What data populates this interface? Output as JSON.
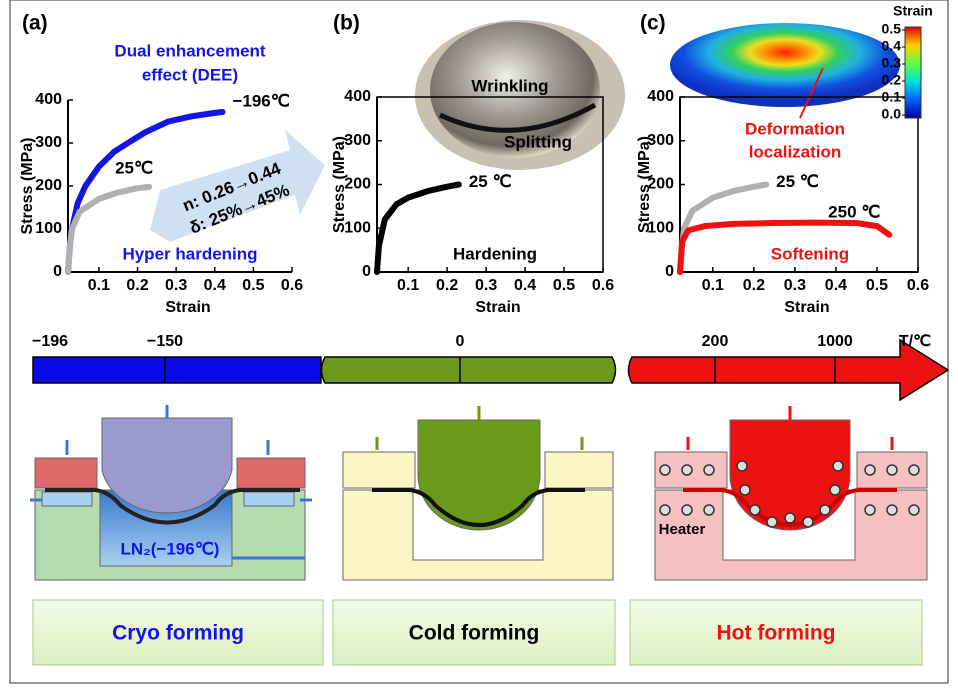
{
  "chart_data": [
    {
      "type": "line",
      "panel_label": "(a)",
      "xlabel": "Strain",
      "ylabel": "Stress (MPa)",
      "xlim": [
        0.02,
        0.6
      ],
      "xticks": [
        0.1,
        0.2,
        0.3,
        0.4,
        0.5,
        0.6
      ],
      "ylim": [
        0,
        400
      ],
      "yticks": [
        0,
        100,
        200,
        300,
        400
      ],
      "series": [
        {
          "name": "−196℃",
          "color": "#1414e6",
          "x": [
            0.02,
            0.025,
            0.03,
            0.045,
            0.065,
            0.1,
            0.14,
            0.175,
            0.22,
            0.28,
            0.34,
            0.4,
            0.42
          ],
          "values": [
            0,
            60,
            100,
            160,
            200,
            245,
            280,
            300,
            325,
            350,
            362,
            370,
            372
          ]
        },
        {
          "name": "25℃",
          "color": "#b0b0b0",
          "x": [
            0.02,
            0.025,
            0.03,
            0.05,
            0.1,
            0.15,
            0.2,
            0.23
          ],
          "values": [
            0,
            60,
            100,
            140,
            170,
            185,
            195,
            198
          ]
        }
      ],
      "annotations": [
        {
          "text": [
            "Dual enhancement",
            "effect (DEE)"
          ],
          "color": "#1414e6"
        },
        {
          "text": [
            "Hyper hardening"
          ],
          "color": "#1414e6"
        },
        {
          "text": [
            "n: 0.26→0.44",
            "δ: 25%→45%"
          ],
          "color": "#000000"
        }
      ]
    },
    {
      "type": "line",
      "panel_label": "(b)",
      "xlabel": "Strain",
      "ylabel": "Stress (MPa)",
      "xlim": [
        0.02,
        0.6
      ],
      "xticks": [
        0.1,
        0.2,
        0.3,
        0.4,
        0.5,
        0.6
      ],
      "ylim": [
        0,
        400
      ],
      "yticks": [
        0,
        100,
        200,
        300,
        400
      ],
      "series": [
        {
          "name": "25 ℃",
          "color": "#000000",
          "x": [
            0.02,
            0.025,
            0.04,
            0.07,
            0.1,
            0.15,
            0.2,
            0.23
          ],
          "values": [
            0,
            60,
            120,
            155,
            170,
            185,
            195,
            200
          ]
        }
      ],
      "annotations": [
        {
          "text": [
            "Hardening"
          ],
          "color": "#000000"
        },
        {
          "text": [
            "Wrinkling"
          ],
          "color": "#000000"
        },
        {
          "text": [
            "Splitting"
          ],
          "color": "#000000"
        }
      ]
    },
    {
      "type": "line",
      "panel_label": "(c)",
      "xlabel": "Strain",
      "ylabel": "Stress (MPa)",
      "xlim": [
        0.02,
        0.6
      ],
      "xticks": [
        0.1,
        0.2,
        0.3,
        0.4,
        0.5,
        0.6
      ],
      "ylim": [
        0,
        400
      ],
      "yticks": [
        0,
        100,
        200,
        300,
        400
      ],
      "series": [
        {
          "name": "25 ℃",
          "color": "#b0b0b0",
          "x": [
            0.02,
            0.025,
            0.03,
            0.05,
            0.1,
            0.15,
            0.2,
            0.23
          ],
          "values": [
            0,
            60,
            100,
            140,
            170,
            185,
            195,
            200
          ]
        },
        {
          "name": "250 ℃",
          "color": "#ee1111",
          "x": [
            0.02,
            0.025,
            0.04,
            0.08,
            0.15,
            0.25,
            0.35,
            0.45,
            0.5,
            0.53
          ],
          "values": [
            0,
            70,
            95,
            105,
            110,
            112,
            113,
            112,
            105,
            85
          ]
        }
      ],
      "annotations": [
        {
          "text": [
            "Softening"
          ],
          "color": "#ee1111"
        },
        {
          "text": [
            "Deformation",
            "localization"
          ],
          "color": "#ee1111"
        }
      ],
      "colorbar": {
        "title": "Strain",
        "lim": [
          0,
          0.5
        ],
        "ticks": [
          {
            "value": 0,
            "label": "0.0"
          },
          0.1,
          0.2,
          0.3,
          0.4,
          0.5
        ]
      }
    }
  ],
  "temperature_axis": {
    "ticks": [
      "−196",
      "−150",
      "0",
      "200",
      "1000"
    ],
    "unit": "T/℃"
  },
  "process_labels": {
    "coolant": "LN₂(−196℃)",
    "heater": "Heater"
  },
  "processes": [
    {
      "title": "Cryo forming",
      "color": "#1414e6"
    },
    {
      "title": "Cold forming",
      "color": "#000000"
    },
    {
      "title": "Hot forming",
      "color": "#ee1111"
    }
  ]
}
